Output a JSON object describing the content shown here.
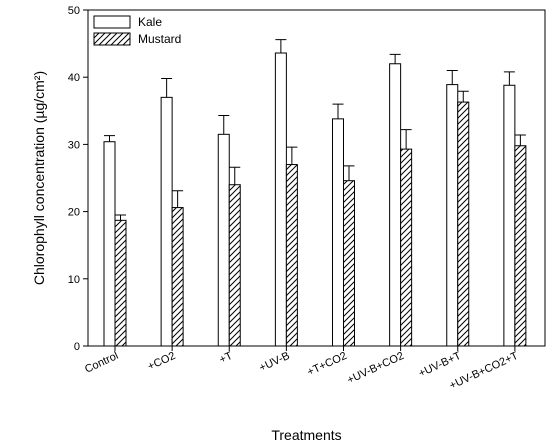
{
  "chart_data": {
    "type": "bar",
    "categories": [
      "Control",
      "+CO2",
      "+T",
      "+UV-B",
      "+T+CO2",
      "+UV-B+CO2",
      "+UV-B+T",
      "+UV-B+CO2+T"
    ],
    "series": [
      {
        "name": "Kale",
        "values": [
          30.4,
          37.0,
          31.5,
          43.6,
          33.8,
          42.0,
          38.9,
          38.8
        ],
        "errors": [
          0.9,
          2.8,
          2.8,
          2.0,
          2.2,
          1.4,
          2.1,
          2.0
        ],
        "fill": "none"
      },
      {
        "name": "Mustard",
        "values": [
          18.7,
          20.6,
          24.0,
          27.0,
          24.6,
          29.3,
          36.3,
          29.8
        ],
        "errors": [
          0.8,
          2.5,
          2.6,
          2.6,
          2.2,
          2.9,
          1.6,
          1.6
        ],
        "fill": "hatch"
      }
    ],
    "xlabel": "Treatments",
    "ylabel": "Chlorophyll concentration (µg/cm²)",
    "ylim": [
      0,
      50
    ],
    "yticks": [
      0,
      10,
      20,
      30,
      40,
      50
    ],
    "grid": false,
    "legend_position": "top-left",
    "colors": {
      "stroke": "#000000",
      "background": "#ffffff"
    }
  }
}
